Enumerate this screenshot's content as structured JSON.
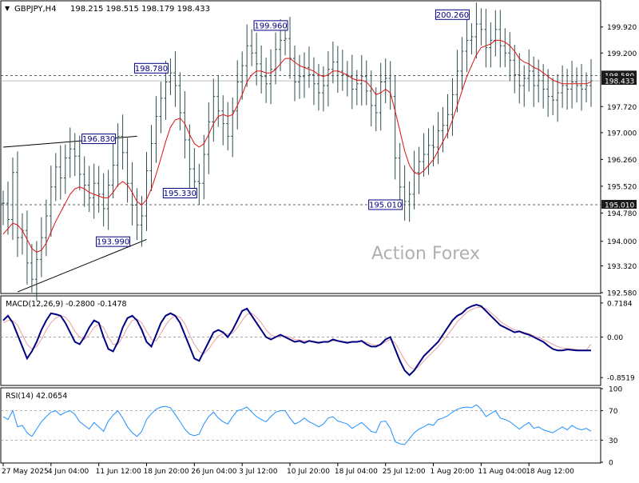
{
  "colors": {
    "background": "#ffffff",
    "frame": "#000000",
    "price_bars": "#2f4f4f",
    "moving_average": "#dd1111",
    "macd_line": "#000080",
    "macd_signal": "#e8a0a0",
    "rsi_line": "#1e90ff",
    "level_line": "#333333",
    "label_text": "#000080",
    "watermark": "#b0b0b0"
  },
  "watermark": "Action Forex",
  "chart_data": [
    {
      "type": "line",
      "panel": "price",
      "symbol_label": "GBPJPY,H4",
      "ohlc_label": "198.215 198.515 198.179 198.433",
      "ylim": [
        192.58,
        200.62
      ],
      "y_ticks": [
        "199.920",
        "199.200",
        "198.580",
        "198.433",
        "197.720",
        "197.000",
        "196.260",
        "195.520",
        "195.010",
        "194.780",
        "194.000",
        "193.320",
        "192.580"
      ],
      "y_tick_values": [
        199.92,
        199.2,
        198.58,
        198.433,
        197.72,
        197.0,
        196.26,
        195.52,
        195.01,
        194.78,
        194.0,
        193.32,
        192.58
      ],
      "highlighted_ticks": [
        "198.580",
        "198.433",
        "195.010"
      ],
      "x_labels": [
        "27 May 2025",
        "4 Jun 04:00",
        "11 Jun 12:00",
        "18 Jun 20:00",
        "26 Jun 04:00",
        "3 Jul 12:00",
        "10 Jul 20:00",
        "18 Jul 04:00",
        "25 Jul 12:00",
        "1 Aug 20:00",
        "11 Aug 04:00",
        "18 Aug 12:00"
      ],
      "x_label_index": [
        0,
        10,
        20,
        30,
        40,
        50,
        60,
        70,
        80,
        90,
        100,
        110
      ],
      "n_bars": 124,
      "close_series": [
        195.05,
        194.6,
        195.9,
        194.1,
        194.3,
        193.4,
        192.95,
        193.5,
        194.1,
        194.7,
        195.5,
        196.05,
        195.75,
        196.3,
        196.55,
        196.35,
        195.85,
        195.55,
        195.2,
        195.6,
        195.3,
        194.9,
        195.55,
        196.1,
        196.9,
        196.45,
        195.6,
        195.0,
        194.45,
        194.7,
        195.95,
        196.7,
        197.45,
        197.95,
        198.4,
        198.65,
        198.3,
        197.55,
        196.8,
        196.0,
        195.65,
        195.6,
        196.4,
        197.3,
        198.0,
        197.6,
        197.25,
        196.9,
        197.6,
        198.4,
        198.85,
        199.4,
        199.2,
        198.9,
        198.55,
        198.35,
        198.75,
        199.3,
        199.55,
        199.6,
        199.05,
        198.4,
        198.55,
        198.8,
        198.6,
        198.35,
        198.1,
        198.3,
        198.75,
        198.95,
        198.7,
        198.6,
        198.55,
        198.2,
        198.35,
        198.55,
        198.15,
        197.75,
        197.55,
        198.4,
        198.5,
        198.0,
        196.3,
        195.5,
        195.1,
        195.3,
        195.9,
        196.2,
        196.4,
        196.65,
        196.6,
        197.05,
        197.2,
        197.5,
        198.05,
        198.7,
        199.25,
        199.55,
        199.65,
        200.0,
        199.85,
        199.35,
        199.55,
        199.85,
        199.4,
        199.2,
        199.0,
        198.6,
        198.3,
        198.5,
        198.7,
        198.3,
        198.433,
        198.2,
        198.0,
        197.9,
        198.1,
        198.3,
        198.2,
        198.4,
        198.3,
        198.2,
        198.3,
        198.433
      ],
      "series": [
        {
          "name": "",
          "kind": "moving_average",
          "values": [
            194.2,
            194.35,
            194.5,
            194.45,
            194.3,
            194.05,
            193.8,
            193.7,
            193.75,
            193.95,
            194.25,
            194.55,
            194.8,
            195.05,
            195.3,
            195.45,
            195.5,
            195.45,
            195.35,
            195.3,
            195.25,
            195.2,
            195.2,
            195.35,
            195.55,
            195.65,
            195.55,
            195.35,
            195.1,
            195.0,
            195.15,
            195.45,
            195.85,
            196.3,
            196.75,
            197.15,
            197.35,
            197.4,
            197.25,
            196.95,
            196.7,
            196.6,
            196.7,
            196.95,
            197.25,
            197.45,
            197.5,
            197.45,
            197.5,
            197.75,
            198.05,
            198.4,
            198.6,
            198.7,
            198.7,
            198.65,
            198.65,
            198.75,
            198.9,
            199.05,
            199.05,
            198.95,
            198.85,
            198.8,
            198.75,
            198.7,
            198.6,
            198.55,
            198.6,
            198.7,
            198.7,
            198.65,
            198.6,
            198.5,
            198.45,
            198.45,
            198.4,
            198.25,
            198.05,
            198.1,
            198.2,
            198.1,
            197.6,
            197.05,
            196.5,
            196.1,
            195.9,
            195.85,
            195.95,
            196.1,
            196.25,
            196.5,
            196.75,
            197.0,
            197.35,
            197.75,
            198.15,
            198.55,
            198.85,
            199.15,
            199.35,
            199.4,
            199.45,
            199.55,
            199.55,
            199.5,
            199.4,
            199.25,
            199.05,
            198.95,
            198.9,
            198.8,
            198.75,
            198.65,
            198.55,
            198.45,
            198.4,
            198.35,
            198.35,
            198.35,
            198.35,
            198.35,
            198.35,
            198.4
          ]
        }
      ],
      "horizontal_levels": [
        198.58,
        195.01
      ],
      "annotations": [
        {
          "label": "200.260",
          "value": 200.26,
          "bar": 98
        },
        {
          "label": "199.960",
          "value": 199.96,
          "bar": 60
        },
        {
          "label": "198.780",
          "value": 198.78,
          "bar": 35
        },
        {
          "label": "196.830",
          "value": 196.83,
          "bar": 24
        },
        {
          "label": "195.330",
          "value": 195.33,
          "bar": 41
        },
        {
          "label": "195.010",
          "value": 195.01,
          "bar": 84
        },
        {
          "label": "193.990",
          "value": 193.99,
          "bar": 27
        }
      ],
      "trendlines": [
        {
          "from": {
            "bar": 0,
            "value": 196.6
          },
          "to": {
            "bar": 28,
            "value": 196.9
          }
        },
        {
          "from": {
            "bar": 3,
            "value": 192.6
          },
          "to": {
            "bar": 30,
            "value": 194.05
          }
        }
      ]
    },
    {
      "type": "line",
      "panel": "macd",
      "label": "MACD(12,26,9) -0.2800 -0.1478",
      "ylim": [
        -1.0,
        0.85
      ],
      "y_ticks": [
        "0.7184",
        "0.00",
        "-0.8519"
      ],
      "y_tick_values": [
        0.7184,
        0.0,
        -0.8519
      ],
      "zero_line": 0.0,
      "series": [
        {
          "name": "",
          "kind": "macd",
          "values": [
            0.35,
            0.45,
            0.3,
            0.05,
            -0.2,
            -0.45,
            -0.3,
            -0.1,
            0.15,
            0.35,
            0.5,
            0.48,
            0.45,
            0.3,
            0.1,
            -0.1,
            -0.15,
            0.0,
            0.2,
            0.35,
            0.3,
            0.0,
            -0.25,
            -0.3,
            -0.1,
            0.2,
            0.4,
            0.45,
            0.35,
            0.15,
            -0.1,
            -0.2,
            0.05,
            0.3,
            0.45,
            0.5,
            0.45,
            0.3,
            0.05,
            -0.2,
            -0.45,
            -0.5,
            -0.3,
            -0.1,
            0.1,
            0.15,
            0.1,
            0.0,
            0.15,
            0.35,
            0.55,
            0.6,
            0.45,
            0.3,
            0.15,
            0.0,
            -0.05,
            0.0,
            0.05,
            0.0,
            -0.05,
            -0.1,
            -0.08,
            -0.12,
            -0.08,
            -0.1,
            -0.12,
            -0.1,
            -0.1,
            -0.05,
            -0.08,
            -0.1,
            -0.12,
            -0.1,
            -0.1,
            -0.08,
            -0.15,
            -0.2,
            -0.2,
            -0.15,
            -0.05,
            0.0,
            -0.25,
            -0.5,
            -0.7,
            -0.8,
            -0.7,
            -0.55,
            -0.4,
            -0.3,
            -0.2,
            -0.1,
            0.05,
            0.2,
            0.35,
            0.45,
            0.5,
            0.6,
            0.65,
            0.68,
            0.65,
            0.55,
            0.45,
            0.35,
            0.25,
            0.2,
            0.15,
            0.1,
            0.12,
            0.08,
            0.05,
            0.0,
            -0.05,
            -0.1,
            -0.18,
            -0.25,
            -0.28,
            -0.28,
            -0.26,
            -0.27,
            -0.28,
            -0.28,
            -0.28,
            -0.28
          ]
        },
        {
          "name": "",
          "kind": "signal",
          "values": [
            0.3,
            0.35,
            0.35,
            0.25,
            0.05,
            -0.15,
            -0.25,
            -0.2,
            -0.05,
            0.15,
            0.3,
            0.4,
            0.45,
            0.42,
            0.3,
            0.12,
            0.0,
            -0.05,
            0.05,
            0.2,
            0.28,
            0.2,
            0.0,
            -0.15,
            -0.15,
            0.0,
            0.2,
            0.35,
            0.38,
            0.3,
            0.12,
            -0.05,
            -0.08,
            0.08,
            0.25,
            0.38,
            0.45,
            0.42,
            0.28,
            0.05,
            -0.15,
            -0.3,
            -0.35,
            -0.25,
            -0.1,
            0.02,
            0.08,
            0.06,
            0.08,
            0.2,
            0.35,
            0.48,
            0.5,
            0.42,
            0.3,
            0.15,
            0.05,
            0.0,
            0.02,
            0.02,
            0.0,
            -0.05,
            -0.06,
            -0.08,
            -0.08,
            -0.09,
            -0.1,
            -0.1,
            -0.1,
            -0.08,
            -0.08,
            -0.09,
            -0.1,
            -0.1,
            -0.1,
            -0.09,
            -0.11,
            -0.15,
            -0.17,
            -0.16,
            -0.1,
            -0.05,
            -0.12,
            -0.3,
            -0.48,
            -0.62,
            -0.68,
            -0.62,
            -0.5,
            -0.4,
            -0.3,
            -0.2,
            -0.08,
            0.05,
            0.18,
            0.32,
            0.42,
            0.52,
            0.58,
            0.62,
            0.63,
            0.6,
            0.52,
            0.43,
            0.33,
            0.26,
            0.2,
            0.15,
            0.13,
            0.1,
            0.07,
            0.03,
            -0.01,
            -0.05,
            -0.1,
            -0.15,
            -0.2,
            -0.23,
            -0.24,
            -0.25,
            -0.26,
            -0.27,
            -0.27,
            -0.15
          ]
        }
      ]
    },
    {
      "type": "line",
      "panel": "rsi",
      "label": "RSI(14) 42.0654",
      "ylim": [
        0,
        100
      ],
      "y_ticks": [
        "100",
        "70",
        "30",
        "0"
      ],
      "y_tick_values": [
        100,
        70,
        30,
        0
      ],
      "levels": [
        70,
        30
      ],
      "series": [
        {
          "name": "",
          "kind": "rsi",
          "values": [
            62,
            58,
            70,
            48,
            50,
            40,
            35,
            45,
            55,
            62,
            68,
            70,
            64,
            68,
            70,
            65,
            55,
            50,
            45,
            54,
            48,
            42,
            56,
            64,
            70,
            60,
            48,
            40,
            35,
            42,
            58,
            66,
            72,
            75,
            76,
            74,
            65,
            55,
            45,
            38,
            36,
            38,
            52,
            62,
            68,
            60,
            55,
            52,
            62,
            70,
            72,
            75,
            68,
            62,
            58,
            55,
            62,
            68,
            70,
            70,
            60,
            52,
            55,
            60,
            55,
            52,
            48,
            52,
            60,
            62,
            56,
            54,
            52,
            46,
            50,
            54,
            48,
            42,
            40,
            55,
            56,
            46,
            28,
            25,
            24,
            32,
            40,
            45,
            48,
            52,
            50,
            58,
            60,
            63,
            68,
            72,
            74,
            75,
            74,
            78,
            72,
            62,
            66,
            70,
            60,
            58,
            55,
            50,
            45,
            50,
            54,
            46,
            48,
            44,
            42,
            40,
            44,
            48,
            44,
            50,
            46,
            44,
            46,
            42.0654
          ]
        }
      ]
    }
  ]
}
